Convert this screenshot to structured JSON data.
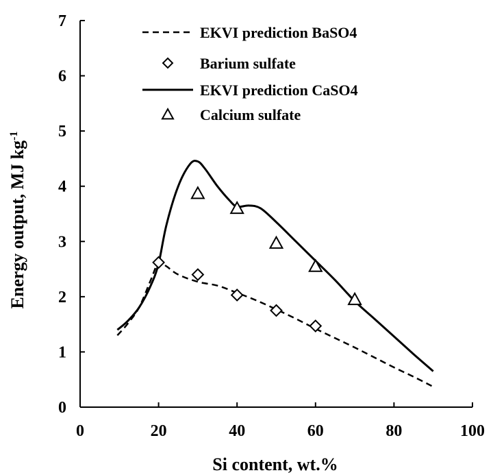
{
  "chart_data": {
    "type": "line",
    "xlabel": "Si content, wt.%",
    "ylabel": "Energy output, MJ kg",
    "ylabel_superscript": "-1",
    "xlim": [
      0,
      100
    ],
    "ylim": [
      0,
      7
    ],
    "xticks": [
      "0",
      "20",
      "40",
      "60",
      "80",
      "100"
    ],
    "yticks": [
      "0",
      "1",
      "2",
      "3",
      "4",
      "5",
      "6",
      "7"
    ],
    "grid": false,
    "legend_position": "top",
    "series": [
      {
        "name": "EKVI prediction BaSO4",
        "kind": "line",
        "style": "dashed",
        "color": "#000000",
        "x": [
          9.5,
          12,
          15,
          18,
          20,
          22,
          25,
          30,
          35,
          40,
          45,
          50,
          55,
          60,
          65,
          70,
          75,
          80,
          85,
          90
        ],
        "y": [
          1.3,
          1.5,
          1.8,
          2.3,
          2.62,
          2.55,
          2.4,
          2.27,
          2.2,
          2.07,
          1.93,
          1.77,
          1.6,
          1.42,
          1.25,
          1.08,
          0.9,
          0.72,
          0.55,
          0.37
        ]
      },
      {
        "name": "Barium sulfate",
        "kind": "marker",
        "marker": "diamond",
        "color": "#000000",
        "x": [
          20,
          30,
          40,
          50,
          60
        ],
        "y": [
          2.62,
          2.4,
          2.03,
          1.75,
          1.47
        ]
      },
      {
        "name": "EKVI prediction CaSO4",
        "kind": "line",
        "style": "solid",
        "color": "#000000",
        "x": [
          9.5,
          12,
          15,
          18,
          20,
          22,
          25,
          28,
          30,
          32,
          35,
          38,
          40,
          43,
          46,
          50,
          55,
          60,
          65,
          70,
          75,
          80,
          85,
          90
        ],
        "y": [
          1.4,
          1.55,
          1.8,
          2.2,
          2.6,
          3.3,
          4.0,
          4.4,
          4.45,
          4.3,
          4.0,
          3.75,
          3.63,
          3.65,
          3.6,
          3.35,
          3.0,
          2.65,
          2.3,
          1.92,
          1.6,
          1.28,
          0.96,
          0.65
        ]
      },
      {
        "name": "Calcium sulfate",
        "kind": "marker",
        "marker": "triangle",
        "color": "#000000",
        "x": [
          30,
          40,
          50,
          60,
          70
        ],
        "y": [
          3.87,
          3.6,
          2.97,
          2.55,
          1.95
        ]
      }
    ]
  }
}
